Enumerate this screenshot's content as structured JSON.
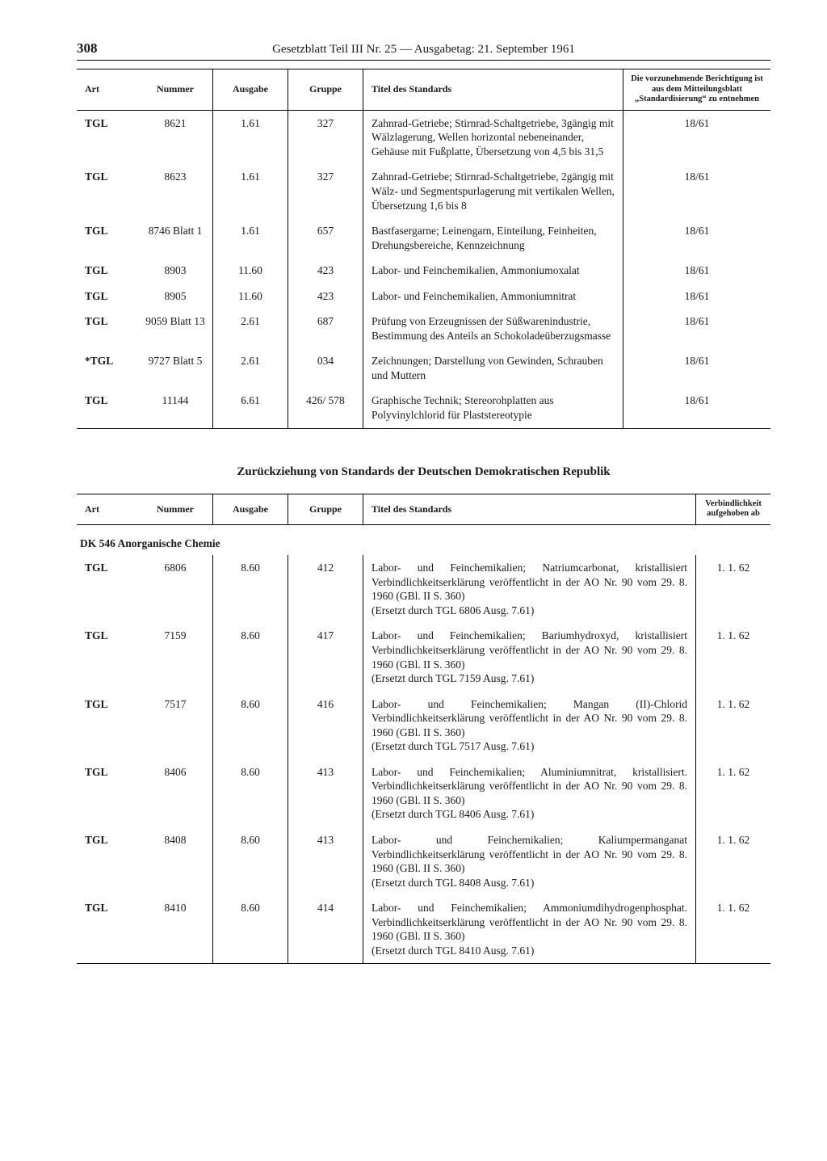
{
  "page_number": "308",
  "header": "Gesetzblatt Teil III Nr. 25 — Ausgabetag: 21. September 1961",
  "table1": {
    "headers": {
      "art": "Art",
      "nummer": "Nummer",
      "ausgabe": "Ausgabe",
      "gruppe": "Gruppe",
      "titel": "Titel des Standards",
      "right": "Die vorzunehmende Berichtigung ist aus dem Mitteilungsblatt „Standardisierung“ zu entnehmen"
    },
    "rows": [
      {
        "art": "TGL",
        "num": "8621",
        "ausg": "1.61",
        "grp": "327",
        "titel": "Zahnrad-Getriebe; Stirnrad-Schaltgetriebe, 3gängig mit Wälzlagerung, Wellen horizontal nebeneinander, Gehäuse mit Fußplatte, Übersetzung von 4,5 bis 31,5",
        "r": "18/61"
      },
      {
        "art": "TGL",
        "num": "8623",
        "ausg": "1.61",
        "grp": "327",
        "titel": "Zahnrad-Getriebe; Stirnrad-Schaltgetriebe, 2gängig mit Wälz- und Segmentspurlagerung mit vertikalen Wellen, Übersetzung 1,6 bis 8",
        "r": "18/61"
      },
      {
        "art": "TGL",
        "num": "8746 Blatt 1",
        "ausg": "1.61",
        "grp": "657",
        "titel": "Bastfasergarne; Leinengarn, Einteilung, Feinheiten, Drehungsbereiche, Kennzeichnung",
        "r": "18/61"
      },
      {
        "art": "TGL",
        "num": "8903",
        "ausg": "11.60",
        "grp": "423",
        "titel": "Labor- und Feinchemikalien, Ammoniumoxalat",
        "r": "18/61"
      },
      {
        "art": "TGL",
        "num": "8905",
        "ausg": "11.60",
        "grp": "423",
        "titel": "Labor- und Feinchemikalien, Ammoniumnitrat",
        "r": "18/61"
      },
      {
        "art": "TGL",
        "num": "9059 Blatt 13",
        "ausg": "2.61",
        "grp": "687",
        "titel": "Prüfung von Erzeugnissen der Süßwarenindustrie, Bestimmung des Anteils an Schokoladeüberzugsmasse",
        "r": "18/61"
      },
      {
        "art": "*TGL",
        "num": "9727 Blatt 5",
        "ausg": "2.61",
        "grp": "034",
        "titel": "Zeichnungen; Darstellung von Gewinden, Schrauben und Muttern",
        "r": "18/61"
      },
      {
        "art": "TGL",
        "num": "11144",
        "ausg": "6.61",
        "grp": "426/ 578",
        "titel": "Graphische Technik; Stereorohplatten aus Polyvinylchlorid für Plaststereotypie",
        "r": "18/61"
      }
    ]
  },
  "section2_title": "Zurückziehung von Standards der Deutschen Demokratischen Republik",
  "table2": {
    "headers": {
      "art": "Art",
      "nummer": "Nummer",
      "ausgabe": "Ausgabe",
      "gruppe": "Gruppe",
      "titel": "Titel des Standards",
      "right": "Verbindlichkeit aufgehoben ab"
    },
    "category": "DK 546 Anorganische Chemie",
    "rows": [
      {
        "art": "TGL",
        "num": "6806",
        "ausg": "8.60",
        "grp": "412",
        "titel": "Labor- und Feinchemikalien; Natriumcarbonat, kristallisiert Verbindlichkeitserklärung veröffentlicht in der AO Nr. 90 vom 29. 8. 1960 (GBl. II S. 360)\n(Ersetzt durch TGL 6806 Ausg. 7.61)",
        "r": "1. 1. 62"
      },
      {
        "art": "TGL",
        "num": "7159",
        "ausg": "8.60",
        "grp": "417",
        "titel": "Labor- und Feinchemikalien; Bariumhydroxyd, kristallisiert Verbindlichkeitserklärung veröffentlicht in der AO Nr. 90 vom 29. 8. 1960 (GBl. II S. 360)\n(Ersetzt durch TGL 7159 Ausg. 7.61)",
        "r": "1. 1. 62"
      },
      {
        "art": "TGL",
        "num": "7517",
        "ausg": "8.60",
        "grp": "416",
        "titel": "Labor- und Feinchemikalien; Mangan (II)-Chlorid Verbindlichkeitserklärung veröffentlicht in der AO Nr. 90 vom 29. 8. 1960 (GBl. II S. 360)\n(Ersetzt durch TGL 7517 Ausg. 7.61)",
        "r": "1. 1. 62"
      },
      {
        "art": "TGL",
        "num": "8406",
        "ausg": "8.60",
        "grp": "413",
        "titel": "Labor- und Feinchemikalien; Aluminiumnitrat, kristallisiert. Verbindlichkeitserklärung veröffentlicht in der AO Nr. 90 vom 29. 8. 1960 (GBl. II S. 360)\n(Ersetzt durch TGL 8406 Ausg. 7.61)",
        "r": "1. 1. 62"
      },
      {
        "art": "TGL",
        "num": "8408",
        "ausg": "8.60",
        "grp": "413",
        "titel": "Labor- und Feinchemikalien; Kaliumpermanganat Verbindlichkeitserklärung veröffentlicht in der AO Nr. 90 vom 29. 8. 1960 (GBl. II S. 360)\n(Ersetzt durch TGL 8408 Ausg. 7.61)",
        "r": "1. 1. 62"
      },
      {
        "art": "TGL",
        "num": "8410",
        "ausg": "8.60",
        "grp": "414",
        "titel": "Labor- und Feinchemikalien; Ammoniumdihydrogenphosphat. Verbindlichkeitserklärung veröffentlicht in der AO Nr. 90 vom 29. 8. 1960 (GBl. II S. 360)\n(Ersetzt durch TGL 8410 Ausg. 7.61)",
        "r": "1. 1. 62"
      }
    ]
  }
}
